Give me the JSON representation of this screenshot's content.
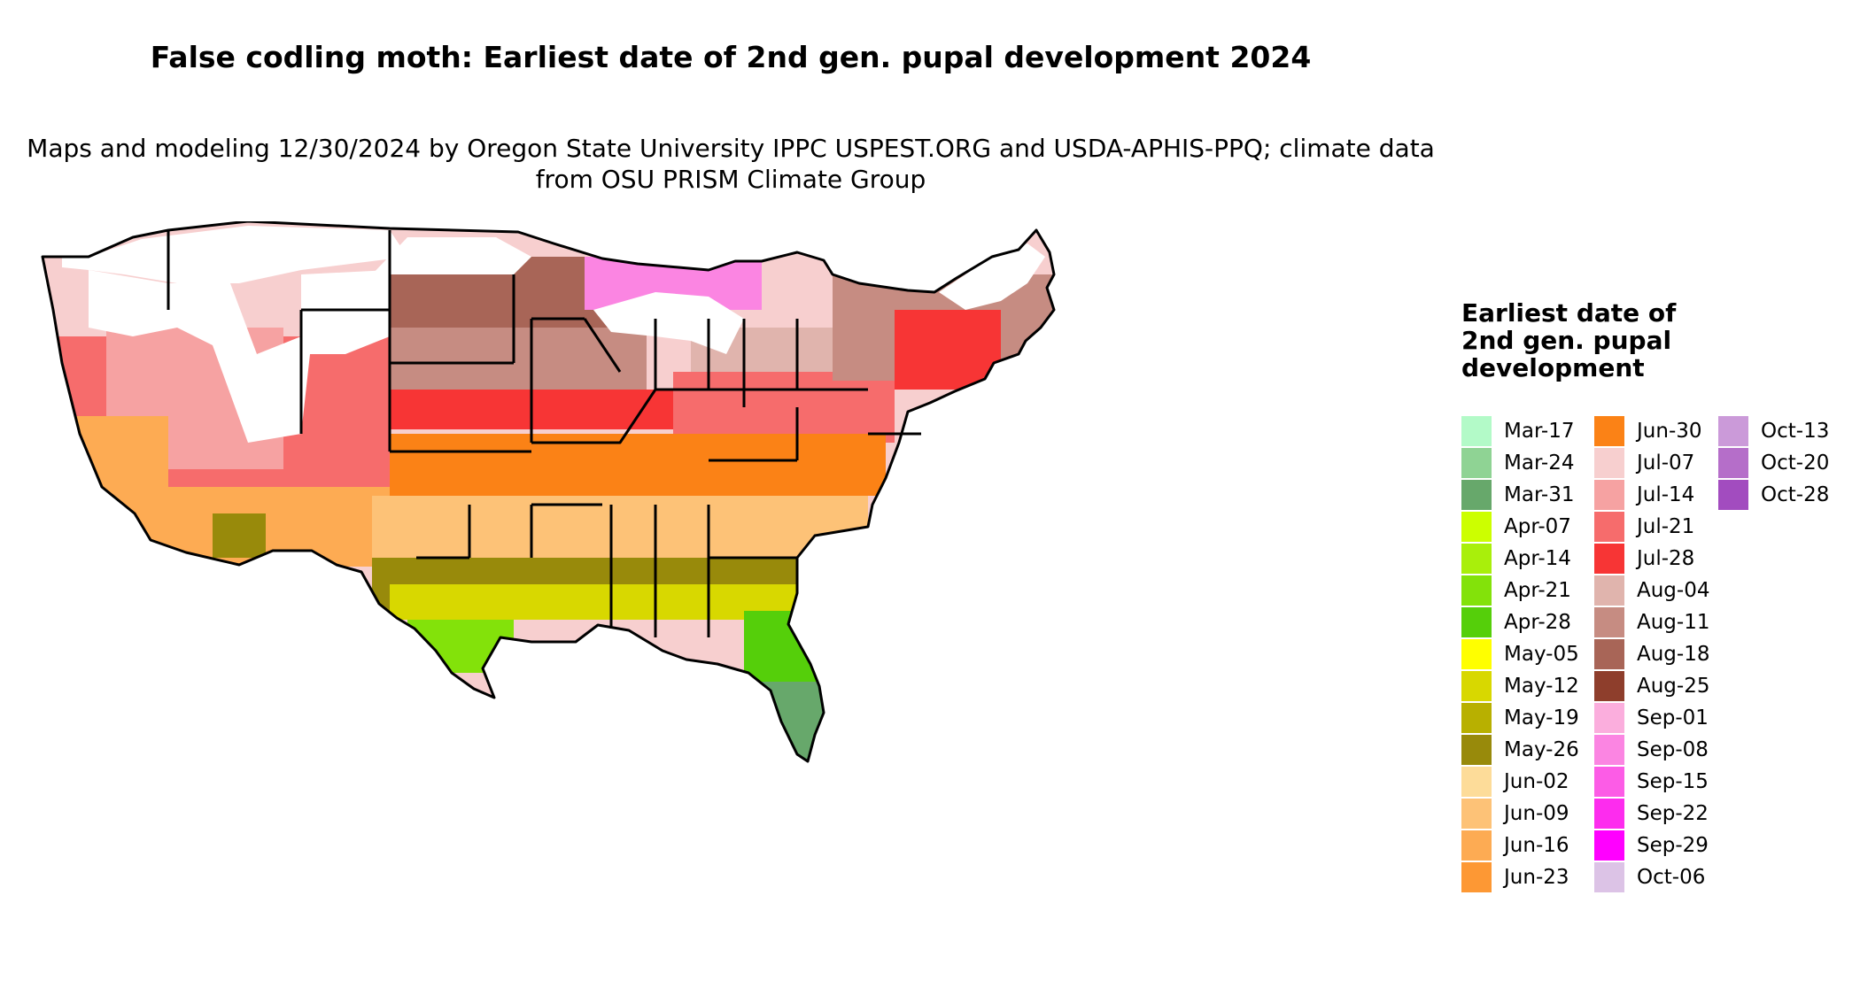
{
  "title": "False codling moth: Earliest date of 2nd gen. pupal development 2024",
  "subtitle": "Maps and modeling 12/30/2024 by Oregon State University IPPC USPEST.ORG and USDA-APHIS-PPQ; climate data from OSU PRISM Climate Group",
  "legend": {
    "title": "Earliest date of 2nd gen. pupal development",
    "columns": [
      [
        {
          "label": "Mar-17",
          "color": "#b3fac8"
        },
        {
          "label": "Mar-24",
          "color": "#8fd394"
        },
        {
          "label": "Mar-31",
          "color": "#67a86b"
        },
        {
          "label": "Apr-07",
          "color": "#ccff00"
        },
        {
          "label": "Apr-14",
          "color": "#a9ef0b"
        },
        {
          "label": "Apr-21",
          "color": "#83e20a"
        },
        {
          "label": "Apr-28",
          "color": "#55cf0a"
        },
        {
          "label": "May-05",
          "color": "#ffff00"
        },
        {
          "label": "May-12",
          "color": "#d8d800"
        },
        {
          "label": "May-19",
          "color": "#b8b000"
        },
        {
          "label": "May-26",
          "color": "#988a0b"
        },
        {
          "label": "Jun-02",
          "color": "#fddc99"
        },
        {
          "label": "Jun-09",
          "color": "#fdc277"
        },
        {
          "label": "Jun-16",
          "color": "#fdab53"
        },
        {
          "label": "Jun-23",
          "color": "#fd9834"
        }
      ],
      [
        {
          "label": "Jun-30",
          "color": "#fb8216"
        },
        {
          "label": "Jul-07",
          "color": "#f7cfcf"
        },
        {
          "label": "Jul-14",
          "color": "#f6a2a2"
        },
        {
          "label": "Jul-21",
          "color": "#f66c6c"
        },
        {
          "label": "Jul-28",
          "color": "#f73535"
        },
        {
          "label": "Aug-04",
          "color": "#e0b4ad"
        },
        {
          "label": "Aug-11",
          "color": "#c68c82"
        },
        {
          "label": "Aug-18",
          "color": "#a86557"
        },
        {
          "label": "Aug-25",
          "color": "#8e3e2c"
        },
        {
          "label": "Sep-01",
          "color": "#fbaedd"
        },
        {
          "label": "Sep-08",
          "color": "#fb85e2"
        },
        {
          "label": "Sep-15",
          "color": "#fc5ce6"
        },
        {
          "label": "Sep-22",
          "color": "#fd2cee"
        },
        {
          "label": "Sep-29",
          "color": "#ff00ff"
        },
        {
          "label": "Oct-06",
          "color": "#dcc3e6"
        }
      ],
      [
        {
          "label": "Oct-13",
          "color": "#cb9ad9"
        },
        {
          "label": "Oct-20",
          "color": "#b56ec9"
        },
        {
          "label": "Oct-28",
          "color": "#a24cbf"
        }
      ]
    ]
  },
  "map": {
    "state_border_color": "#000000",
    "no_development_color": "#ffffff"
  }
}
